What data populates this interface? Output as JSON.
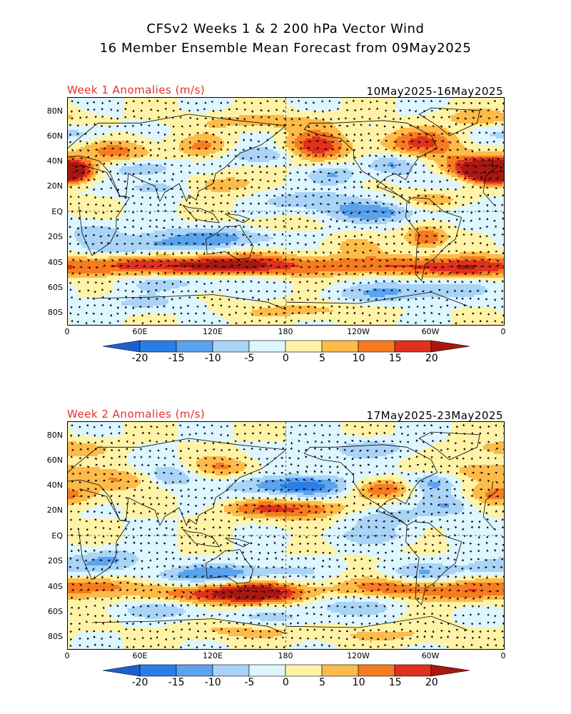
{
  "title": {
    "line1": "CFSv2 Weeks 1 & 2 200 hPa Vector Wind",
    "line2": "16 Member Ensemble Mean Forecast from 09May2025"
  },
  "panels": [
    {
      "label": "Week 1 Anomalies (m/s)",
      "dates": "10May2025-16May2025"
    },
    {
      "label": "Week 2 Anomalies (m/s)",
      "dates": "17May2025-23May2025"
    }
  ],
  "lat_labels": [
    "80N",
    "60N",
    "40N",
    "20N",
    "EQ",
    "20S",
    "40S",
    "60S",
    "80S"
  ],
  "lon_labels": [
    "0",
    "60E",
    "120E",
    "180",
    "120W",
    "60W",
    "0"
  ],
  "colorbar": {
    "labels": [
      "-20",
      "-15",
      "-10",
      "-5",
      "0",
      "5",
      "10",
      "15",
      "20"
    ],
    "colors": [
      "#1e5fd0",
      "#2b7de6",
      "#5aa3ee",
      "#a9d4f7",
      "#ddf6ff",
      "#fff3a8",
      "#fdbb4a",
      "#f77b20",
      "#e0301e",
      "#a81810"
    ]
  },
  "colors": {
    "title_red": "#e0302a",
    "coast": "#000000"
  }
}
